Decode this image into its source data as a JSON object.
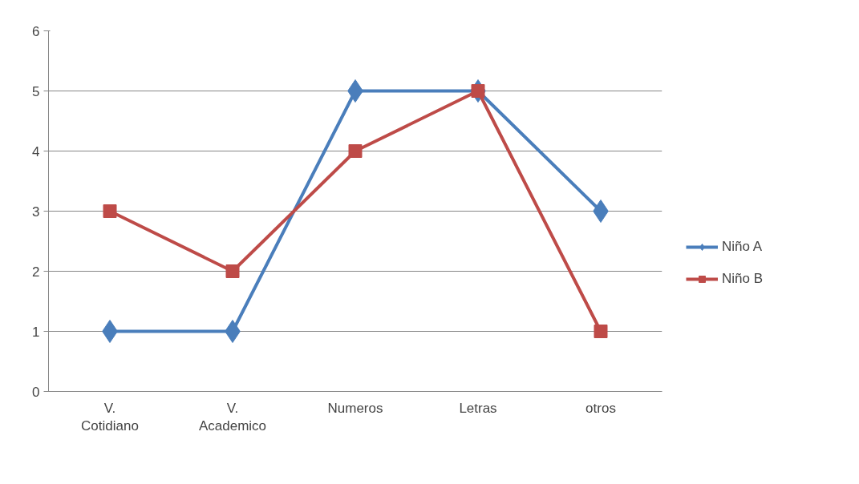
{
  "chart_data": {
    "type": "line",
    "categories": [
      "V. Cotidiano",
      "V. Academico",
      "Numeros",
      "Letras",
      "otros"
    ],
    "series": [
      {
        "name": "Niño A",
        "color": "#4a7ebb",
        "marker": "diamond",
        "values": [
          1,
          1,
          5,
          5,
          3
        ]
      },
      {
        "name": "Niño B",
        "color": "#be4b48",
        "marker": "square",
        "values": [
          3,
          2,
          4,
          5,
          1
        ]
      }
    ],
    "ylim": [
      0,
      6
    ],
    "yticks": [
      0,
      1,
      2,
      3,
      4,
      5,
      6
    ],
    "grid": "y",
    "legend": "right",
    "line_style": "solid"
  }
}
